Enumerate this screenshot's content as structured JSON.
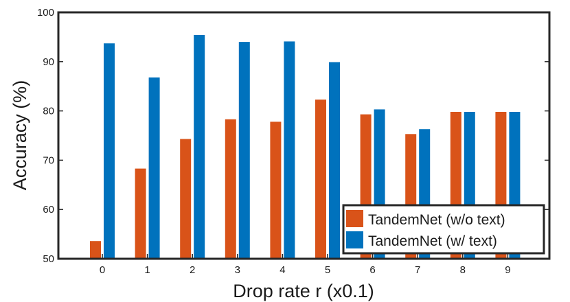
{
  "chart_data": {
    "type": "bar",
    "title": "",
    "xlabel": "Drop rate r (x0.1)",
    "ylabel": "Accuracy (%)",
    "categories": [
      "0",
      "1",
      "2",
      "3",
      "4",
      "5",
      "6",
      "7",
      "8",
      "9"
    ],
    "series": [
      {
        "name": "TandemNet (w/o text)",
        "color": "#d95319",
        "values": [
          53.6,
          68.3,
          74.3,
          78.3,
          77.8,
          82.3,
          79.3,
          75.3,
          79.8,
          79.8
        ]
      },
      {
        "name": "TandemNet (w/ text)",
        "color": "#0072bd",
        "values": [
          93.7,
          86.8,
          95.4,
          94.0,
          94.1,
          89.9,
          80.3,
          76.3,
          79.8,
          79.8
        ]
      }
    ],
    "ylim": [
      50,
      100
    ],
    "yticks": [
      50,
      60,
      70,
      80,
      90,
      100
    ],
    "grid": false,
    "legend_position": "bottom-right"
  }
}
